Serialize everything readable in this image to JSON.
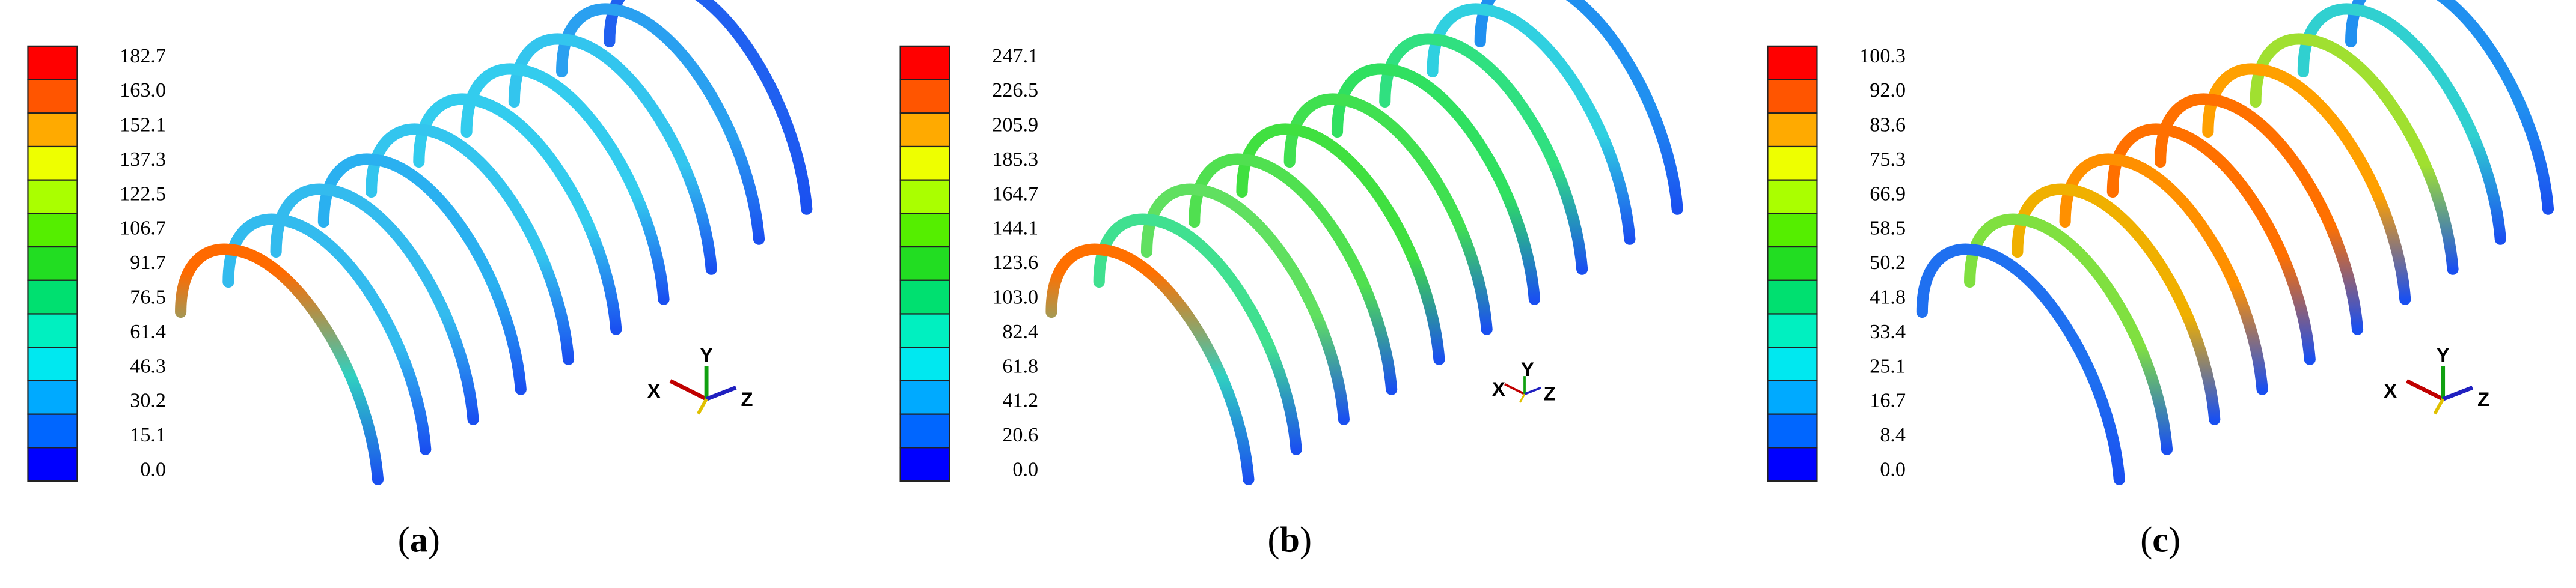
{
  "colors": [
    "#ff0000",
    "#ff5500",
    "#ffaa00",
    "#eeff00",
    "#aaff00",
    "#55ee00",
    "#22dd22",
    "#00e070",
    "#00f0c0",
    "#00e8f0",
    "#00aaff",
    "#0066ff",
    "#0000ff"
  ],
  "panels": [
    {
      "legend": [
        "182.7",
        "163.0",
        "152.1",
        "137.3",
        "122.5",
        "106.7",
        "91.7",
        "76.5",
        "61.4",
        "46.3",
        "30.2",
        "15.1",
        "0.0"
      ],
      "caption": [
        "(",
        "a",
        ")"
      ],
      "axes": [
        "X",
        "Y",
        "Z"
      ]
    },
    {
      "legend": [
        "247.1",
        "226.5",
        "205.9",
        "185.3",
        "164.7",
        "144.1",
        "123.6",
        "103.0",
        "82.4",
        "61.8",
        "41.2",
        "20.6",
        "0.0"
      ],
      "caption": [
        "(",
        "b",
        ")"
      ],
      "axes": [
        "X",
        "Y",
        "Z"
      ]
    },
    {
      "legend": [
        "100.3",
        "92.0",
        "83.6",
        "75.3",
        "66.9",
        "58.5",
        "50.2",
        "41.8",
        "33.4",
        "25.1",
        "16.7",
        "8.4",
        "0.0"
      ],
      "caption": [
        "(",
        "c",
        ")"
      ],
      "axes": [
        "X",
        "Y",
        "Z"
      ]
    }
  ]
}
